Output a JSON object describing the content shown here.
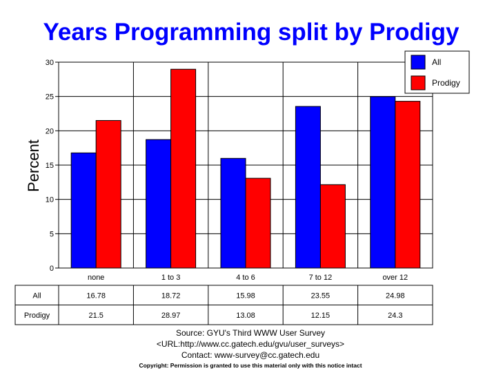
{
  "chart_data": {
    "type": "bar",
    "title": "Years Programming split by Prodigy",
    "xlabel": "",
    "ylabel": "Percent",
    "ylim": [
      0,
      30
    ],
    "yticks": [
      0,
      5,
      10,
      15,
      20,
      25,
      30
    ],
    "grid": true,
    "legend_position": "top-right",
    "categories": [
      "none",
      "1 to 3",
      "4 to 6",
      "7 to 12",
      "over 12"
    ],
    "series": [
      {
        "name": "All",
        "color": "#0000FF",
        "values": [
          16.78,
          18.72,
          15.98,
          23.55,
          24.98
        ],
        "labels": [
          "16.78",
          "18.72",
          "15.98",
          "23.55",
          "24.98"
        ]
      },
      {
        "name": "Prodigy",
        "color": "#FF0000",
        "values": [
          21.5,
          28.97,
          13.08,
          12.15,
          24.3
        ],
        "labels": [
          "21.5",
          "28.97",
          "13.08",
          "12.15",
          "24.3"
        ]
      }
    ]
  },
  "footer": {
    "source": "Source: GYU's Third WWW User Survey",
    "url": "<URL:http://www.cc.gatech.edu/gvu/user_surveys>",
    "contact": "Contact: www-survey@cc.gatech.edu",
    "copyright": "Copyright: Permission is granted to use this material only with this notice intact"
  }
}
